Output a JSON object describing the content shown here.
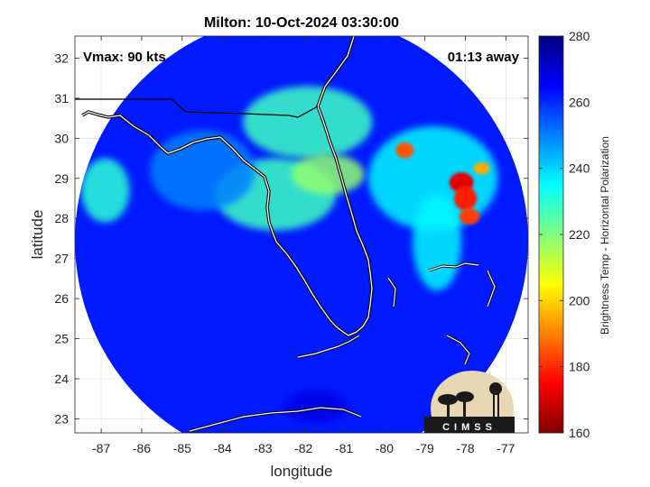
{
  "chart_data": {
    "type": "heatmap",
    "title": "Milton: 10-Oct-2024 03:30:00",
    "xlabel": "longitude",
    "ylabel": "latitude",
    "xlim": [
      -87.65,
      -76.45
    ],
    "ylim": [
      22.65,
      32.55
    ],
    "xticks": [
      -87,
      -86,
      -85,
      -84,
      -83,
      -82,
      -81,
      -80,
      -79,
      -78,
      -77
    ],
    "yticks": [
      23,
      24,
      25,
      26,
      27,
      28,
      29,
      30,
      31,
      32
    ],
    "grid": true,
    "annotations": {
      "left": "Vmax: 90 kts",
      "right": "01:13 away"
    },
    "swath": {
      "center_lon": -82.05,
      "center_lat": 27.45,
      "radius_deg": 5.6,
      "background_value": 262
    },
    "features": [
      {
        "lon": -81.9,
        "lat": 30.4,
        "rx": 1.6,
        "ry": 0.9,
        "value": 228
      },
      {
        "lon": -82.7,
        "lat": 28.6,
        "rx": 1.5,
        "ry": 0.9,
        "value": 228
      },
      {
        "lon": -81.4,
        "lat": 29.1,
        "rx": 0.9,
        "ry": 0.5,
        "value": 218
      },
      {
        "lon": -86.9,
        "lat": 28.7,
        "rx": 0.6,
        "ry": 0.8,
        "value": 230
      },
      {
        "lon": -84.5,
        "lat": 29.2,
        "rx": 1.3,
        "ry": 1.0,
        "value": 250
      },
      {
        "lon": -78.8,
        "lat": 29.0,
        "rx": 1.6,
        "ry": 1.3,
        "value": 236
      },
      {
        "lon": -78.7,
        "lat": 27.4,
        "rx": 0.6,
        "ry": 1.2,
        "value": 236
      },
      {
        "lon": -78.1,
        "lat": 28.9,
        "rx": 0.3,
        "ry": 0.25,
        "value": 172
      },
      {
        "lon": -78.0,
        "lat": 28.5,
        "rx": 0.28,
        "ry": 0.3,
        "value": 178
      },
      {
        "lon": -77.9,
        "lat": 28.05,
        "rx": 0.25,
        "ry": 0.2,
        "value": 182
      },
      {
        "lon": -79.5,
        "lat": 29.7,
        "rx": 0.22,
        "ry": 0.2,
        "value": 185
      },
      {
        "lon": -77.6,
        "lat": 29.25,
        "rx": 0.2,
        "ry": 0.15,
        "value": 195
      },
      {
        "lon": -81.7,
        "lat": 23.3,
        "rx": 0.8,
        "ry": 0.4,
        "value": 268
      }
    ],
    "colorbar": {
      "label": "Brightness Temp - Horizontal Polarization",
      "range": [
        160,
        280
      ],
      "ticks": [
        160,
        180,
        200,
        220,
        240,
        260,
        280
      ],
      "colormap": "jet"
    },
    "logo": {
      "text": "CIMSS"
    }
  }
}
